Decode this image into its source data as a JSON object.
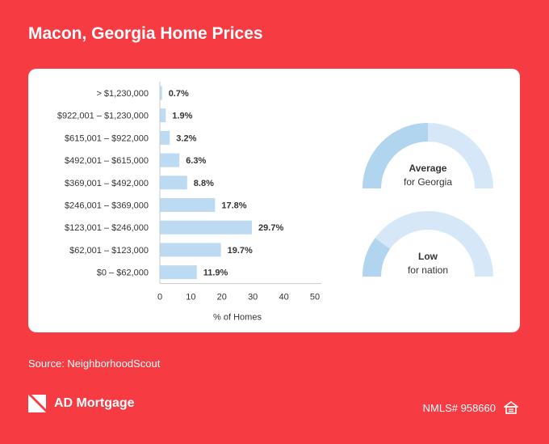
{
  "page": {
    "title": "Macon, Georgia Home Prices",
    "source": "Source: NeighborhoodScout",
    "brand_name": "AD Mortgage",
    "nmls": "NMLS# 958660"
  },
  "colors": {
    "background": "#f63b43",
    "bar": "#bcdaf2",
    "gauge_light": "#d6e8f7",
    "gauge_dark": "#b1d4ef",
    "text": "#333333"
  },
  "chart_data": [
    {
      "type": "bar",
      "orientation": "horizontal",
      "categories": [
        "> $1,230,000",
        "$922,001 – $1,230,000",
        "$615,001 – $922,000",
        "$492,001 – $615,000",
        "$369,001 – $492,000",
        "$246,001 – $369,000",
        "$123,001 – $246,000",
        "$62,001 – $123,000",
        "$0 – $62,000"
      ],
      "values": [
        0.7,
        1.9,
        3.2,
        6.3,
        8.8,
        17.8,
        29.7,
        19.7,
        11.9
      ],
      "value_labels": [
        "0.7%",
        "1.9%",
        "3.2%",
        "6.3%",
        "8.8%",
        "17.8%",
        "29.7%",
        "19.7%",
        "11.9%"
      ],
      "xlabel": "% of Homes",
      "xlim": [
        0,
        50
      ],
      "xticks": [
        0,
        10,
        20,
        30,
        40,
        50
      ],
      "grid": false
    },
    {
      "type": "gauge",
      "label_bold": "Average",
      "label": "for Georgia",
      "level": 0.5
    },
    {
      "type": "gauge",
      "label_bold": "Low",
      "label": "for nation",
      "level": 0.2
    }
  ]
}
